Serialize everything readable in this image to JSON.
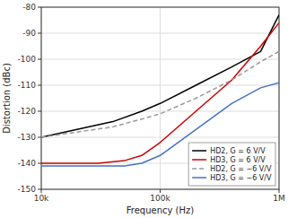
{
  "chart_data": {
    "type": "line",
    "title": "",
    "x_label": "Frequency (Hz)",
    "y_label": "Distortion (dBc)",
    "log": "x",
    "grid": true,
    "legend": "lower right",
    "xlim": [
      10000,
      1000000
    ],
    "xticks": [
      {
        "value": 10000,
        "label": "10k"
      },
      {
        "value": 100000,
        "label": "100k"
      },
      {
        "value": 1000000,
        "label": "1M"
      }
    ],
    "ylim": [
      -150,
      -80
    ],
    "yticks": [
      -150,
      -140,
      -130,
      -120,
      -110,
      -100,
      -90,
      -80
    ],
    "series": [
      {
        "name": "HD2, G = 6 V/V",
        "color": "#000000",
        "line_style": "solid",
        "x": [
          10000,
          20000,
          40000,
          70000,
          100000,
          200000,
          400000,
          700000,
          1000000
        ],
        "values": [
          -130,
          -127,
          -124,
          -120,
          -117,
          -110,
          -103,
          -97,
          -83
        ]
      },
      {
        "name": "HD3, G = 6 V/V",
        "color": "#cc0000",
        "line_style": "solid",
        "x": [
          10000,
          30000,
          50000,
          70000,
          100000,
          200000,
          400000,
          700000,
          1000000
        ],
        "values": [
          -140,
          -140,
          -139,
          -137,
          -132,
          -120,
          -108,
          -95,
          -86
        ]
      },
      {
        "name": "HD2, G = −6 V/V",
        "color": "#999999",
        "line_style": "dashed",
        "x": [
          10000,
          20000,
          40000,
          70000,
          100000,
          200000,
          400000,
          700000,
          1000000
        ],
        "values": [
          -130,
          -128,
          -126,
          -123,
          -121,
          -115,
          -108,
          -101,
          -97
        ]
      },
      {
        "name": "HD3, G = −6 V/V",
        "color": "#4472c4",
        "line_style": "solid",
        "x": [
          10000,
          30000,
          50000,
          70000,
          100000,
          200000,
          400000,
          700000,
          1000000
        ],
        "values": [
          -141,
          -141,
          -141,
          -140,
          -137,
          -127,
          -117,
          -111,
          -109
        ]
      }
    ]
  }
}
